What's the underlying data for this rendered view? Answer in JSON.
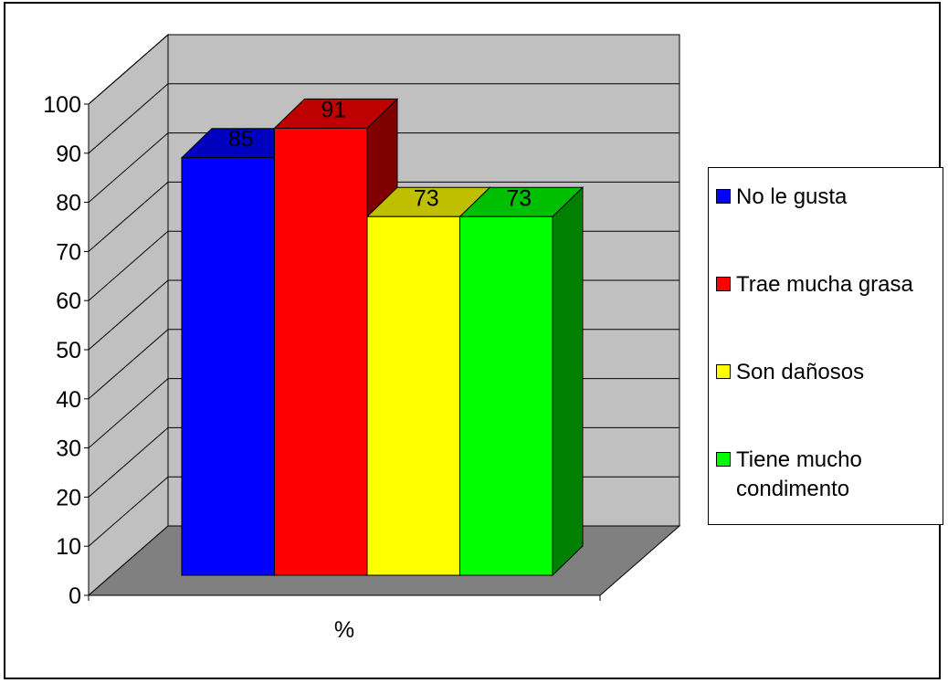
{
  "chart_data": {
    "type": "bar",
    "categories": [
      "%"
    ],
    "xlabel": "%",
    "ylim": [
      0,
      100
    ],
    "yticks": [
      0,
      10,
      20,
      30,
      40,
      50,
      60,
      70,
      80,
      90,
      100
    ],
    "grid": true,
    "legend_position": "right",
    "style": "3d-clustered-column",
    "series": [
      {
        "name": "No le gusta",
        "values": [
          85
        ],
        "label": "85",
        "color": "#0000FF"
      },
      {
        "name": "Trae mucha grasa",
        "values": [
          91
        ],
        "label": "91",
        "color": "#FF0000"
      },
      {
        "name": "Son dañosos",
        "values": [
          73
        ],
        "label": "73",
        "color": "#FFFF00"
      },
      {
        "name": "Tiene mucho condimento",
        "values": [
          73
        ],
        "label": "73",
        "color": "#00FF00"
      }
    ],
    "wall_color": "#C0C0C0",
    "floor_color": "#808080"
  }
}
